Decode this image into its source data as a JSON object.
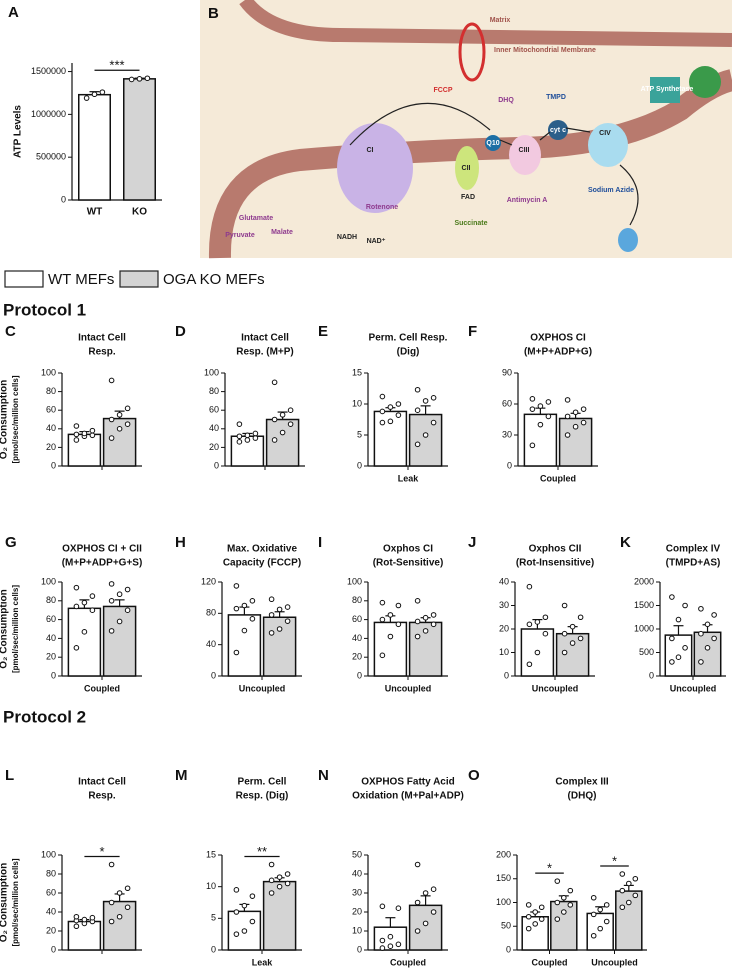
{
  "legend": [
    {
      "name": "WT MEFs",
      "color": "#ffffff"
    },
    {
      "name": "OGA KO MEFs",
      "color": "#d4d4d4"
    }
  ],
  "protocols": [
    "Protocol 1",
    "Protocol 2"
  ],
  "diagram": {
    "panel": "B",
    "labels": [
      "Matrix",
      "Inner Mitochondrial Membrane",
      "FCCP",
      "DHQ",
      "TMPD",
      "CI",
      "CII",
      "FAD",
      "Succinate",
      "Q10",
      "CIII",
      "cyt c",
      "CIV",
      "ATP Synthetase",
      "Rotenone",
      "Antimycin A",
      "Sodium Azide",
      "Glutamate",
      "Pyruvate",
      "Malate",
      "NADH",
      "NAD⁺"
    ]
  },
  "chart_data": [
    {
      "panel": "A",
      "type": "bar",
      "ylabel": [
        "ATP Levels"
      ],
      "categories": [
        "WT",
        "KO"
      ],
      "values": [
        1230000,
        1415000
      ],
      "errors": [
        35000,
        8000
      ],
      "points": [
        [
          1190000,
          1235000,
          1260000
        ],
        [
          1408000,
          1415000,
          1422000
        ]
      ],
      "colors": [
        "#ffffff",
        "#d4d4d4"
      ],
      "ylim": [
        0,
        1600000
      ],
      "yticks": [
        0,
        500000,
        1000000,
        1500000
      ],
      "significance": "***"
    },
    {
      "panel": "C",
      "type": "bar",
      "title": [
        "Intact  Cell",
        "Resp."
      ],
      "ylabel": [
        "O₂ Consumption",
        "[pmol/sec/million cells]"
      ],
      "categories": [
        null
      ],
      "series": [
        {
          "values": [
            34
          ],
          "errors": [
            3
          ],
          "points": [
            [
              28,
              32,
              33,
              34,
              35,
              38,
              43
            ]
          ]
        },
        {
          "values": [
            51
          ],
          "errors": [
            8
          ],
          "points": [
            [
              30,
              40,
              45,
              50,
              55,
              62,
              92
            ]
          ]
        }
      ],
      "ylim": [
        0,
        100
      ],
      "yticks": [
        0,
        20,
        40,
        60,
        80,
        100
      ]
    },
    {
      "panel": "D",
      "type": "bar",
      "title": [
        "Intact  Cell",
        "Resp. (M+P)"
      ],
      "categories": [
        null
      ],
      "series": [
        {
          "values": [
            32
          ],
          "errors": [
            3
          ],
          "points": [
            [
              26,
              28,
              30,
              32,
              33,
              35,
              45
            ]
          ]
        },
        {
          "values": [
            50
          ],
          "errors": [
            8
          ],
          "points": [
            [
              28,
              36,
              45,
              50,
              55,
              60,
              90
            ]
          ]
        }
      ],
      "ylim": [
        0,
        100
      ],
      "yticks": [
        0,
        20,
        40,
        60,
        80,
        100
      ]
    },
    {
      "panel": "E",
      "type": "bar",
      "title": [
        "Perm. Cell Resp.",
        "(Dig)"
      ],
      "categories": [
        "Leak"
      ],
      "series": [
        {
          "values": [
            8.8
          ],
          "errors": [
            0.6
          ],
          "points": [
            [
              7,
              7.2,
              8.2,
              8.8,
              9.5,
              10,
              11.2
            ]
          ]
        },
        {
          "values": [
            8.3
          ],
          "errors": [
            1.4
          ],
          "points": [
            [
              3.5,
              5,
              7,
              9,
              10.5,
              11,
              12.3
            ]
          ]
        }
      ],
      "ylim": [
        0,
        15
      ],
      "yticks": [
        0,
        5,
        10,
        15
      ]
    },
    {
      "panel": "F",
      "type": "bar",
      "title": [
        "OXPHOS CI",
        "(M+P+ADP+G)"
      ],
      "categories": [
        "Coupled"
      ],
      "series": [
        {
          "values": [
            50
          ],
          "errors": [
            6
          ],
          "points": [
            [
              20,
              40,
              48,
              55,
              58,
              62,
              65
            ]
          ]
        },
        {
          "values": [
            46
          ],
          "errors": [
            5
          ],
          "points": [
            [
              30,
              38,
              42,
              48,
              52,
              55,
              64
            ]
          ]
        }
      ],
      "ylim": [
        0,
        90
      ],
      "yticks": [
        0,
        30,
        60,
        90
      ]
    },
    {
      "panel": "G",
      "type": "bar",
      "title": [
        "OXPHOS  CI + CII",
        "(M+P+ADP+G+S)"
      ],
      "ylabel": [
        "O₂ Consumption",
        "[pmol/sec/million cells]"
      ],
      "categories": [
        "Coupled"
      ],
      "series": [
        {
          "values": [
            72
          ],
          "errors": [
            9
          ],
          "points": [
            [
              30,
              47,
              70,
              74,
              78,
              85,
              94
            ]
          ]
        },
        {
          "values": [
            74
          ],
          "errors": [
            7
          ],
          "points": [
            [
              48,
              58,
              70,
              80,
              87,
              92,
              98
            ]
          ]
        }
      ],
      "ylim": [
        0,
        100
      ],
      "yticks": [
        0,
        20,
        40,
        60,
        80,
        100
      ]
    },
    {
      "panel": "H",
      "type": "bar",
      "title": [
        "Max. Oxidative",
        "Capacity (FCCP)"
      ],
      "categories": [
        "Uncoupled"
      ],
      "series": [
        {
          "values": [
            78
          ],
          "errors": [
            10
          ],
          "points": [
            [
              30,
              58,
              73,
              86,
              90,
              96,
              115
            ]
          ]
        },
        {
          "values": [
            75
          ],
          "errors": [
            7
          ],
          "points": [
            [
              55,
              60,
              70,
              78,
              85,
              88,
              98
            ]
          ]
        }
      ],
      "ylim": [
        0,
        120
      ],
      "yticks": [
        0,
        40,
        80,
        120
      ]
    },
    {
      "panel": "I",
      "type": "bar",
      "title": [
        "Oxphos CI",
        "(Rot-Sensitive)"
      ],
      "categories": [
        "Uncoupled"
      ],
      "series": [
        {
          "values": [
            57
          ],
          "errors": [
            7
          ],
          "points": [
            [
              22,
              42,
              55,
              60,
              65,
              75,
              78
            ]
          ]
        },
        {
          "values": [
            57
          ],
          "errors": [
            5
          ],
          "points": [
            [
              42,
              48,
              55,
              58,
              62,
              65,
              80
            ]
          ]
        }
      ],
      "ylim": [
        0,
        100
      ],
      "yticks": [
        0,
        20,
        40,
        60,
        80,
        100
      ]
    },
    {
      "panel": "J",
      "type": "bar",
      "title": [
        "Oxphos CII",
        "(Rot-Insensitive)"
      ],
      "categories": [
        "Uncoupled"
      ],
      "series": [
        {
          "values": [
            20
          ],
          "errors": [
            4
          ],
          "points": [
            [
              5,
              10,
              18,
              22,
              23,
              25,
              38
            ]
          ]
        },
        {
          "values": [
            18
          ],
          "errors": [
            3
          ],
          "points": [
            [
              10,
              14,
              16,
              18,
              21,
              25,
              30
            ]
          ]
        }
      ],
      "ylim": [
        0,
        40
      ],
      "yticks": [
        0,
        10,
        20,
        30,
        40
      ]
    },
    {
      "panel": "K",
      "type": "bar",
      "title": [
        "Complex IV",
        "(TMPD+AS)"
      ],
      "categories": [
        "Uncoupled"
      ],
      "series": [
        {
          "values": [
            870
          ],
          "errors": [
            200
          ],
          "points": [
            [
              300,
              400,
              600,
              800,
              1200,
              1500,
              1680
            ]
          ]
        },
        {
          "values": [
            930
          ],
          "errors": [
            160
          ],
          "points": [
            [
              300,
              600,
              800,
              900,
              1100,
              1300,
              1430
            ]
          ]
        }
      ],
      "ylim": [
        0,
        2000
      ],
      "yticks": [
        0,
        500,
        1000,
        1500,
        2000
      ]
    },
    {
      "panel": "L",
      "type": "bar",
      "title": [
        "Intact  Cell",
        "Resp."
      ],
      "ylabel": [
        "O₂ Consumption",
        "[pmol/sec/million cells]"
      ],
      "categories": [
        null
      ],
      "series": [
        {
          "values": [
            30
          ],
          "errors": [
            2
          ],
          "points": [
            [
              25,
              28,
              30,
              31,
              32,
              34,
              35
            ]
          ]
        },
        {
          "values": [
            51
          ],
          "errors": [
            8
          ],
          "points": [
            [
              30,
              35,
              45,
              50,
              60,
              65,
              90
            ]
          ]
        }
      ],
      "ylim": [
        0,
        100
      ],
      "yticks": [
        0,
        20,
        40,
        60,
        80,
        100
      ],
      "significance": [
        "*"
      ]
    },
    {
      "panel": "M",
      "type": "bar",
      "title": [
        "Perm. Cell",
        "Resp. (Dig)"
      ],
      "categories": [
        "Leak"
      ],
      "series": [
        {
          "values": [
            6.1
          ],
          "errors": [
            1.1
          ],
          "points": [
            [
              2.5,
              3,
              4.5,
              6,
              7,
              8.5,
              9.5
            ]
          ]
        },
        {
          "values": [
            10.8
          ],
          "errors": [
            0.6
          ],
          "points": [
            [
              9,
              10,
              10.5,
              11,
              11.5,
              12,
              13.5
            ]
          ]
        }
      ],
      "ylim": [
        0,
        15
      ],
      "yticks": [
        0,
        5,
        10,
        15
      ],
      "significance": [
        "**"
      ]
    },
    {
      "panel": "N",
      "type": "bar",
      "title": [
        "OXPHOS Fatty  Acid",
        "Oxidation (M+Pal+ADP)"
      ],
      "categories": [
        "Coupled"
      ],
      "series": [
        {
          "values": [
            12
          ],
          "errors": [
            5
          ],
          "points": [
            [
              1,
              2,
              3,
              5,
              7,
              22,
              23
            ]
          ]
        },
        {
          "values": [
            23.5
          ],
          "errors": [
            5
          ],
          "points": [
            [
              10,
              14,
              20,
              25,
              30,
              32,
              45
            ]
          ]
        }
      ],
      "ylim": [
        0,
        50
      ],
      "yticks": [
        0,
        10,
        20,
        30,
        40,
        50
      ]
    },
    {
      "panel": "O",
      "type": "bar",
      "title": [
        "Complex III",
        "(DHQ)"
      ],
      "categories": [
        "Coupled",
        "Uncoupled"
      ],
      "series": [
        {
          "values": [
            70,
            77
          ],
          "errors": [
            10,
            14
          ],
          "points": [
            [
              45,
              55,
              65,
              70,
              80,
              90,
              95
            ],
            [
              30,
              45,
              60,
              75,
              85,
              95,
              110
            ]
          ]
        },
        {
          "values": [
            102,
            124
          ],
          "errors": [
            12,
            12
          ],
          "points": [
            [
              65,
              80,
              95,
              100,
              110,
              125,
              145
            ],
            [
              90,
              100,
              115,
              125,
              140,
              150,
              160
            ]
          ]
        }
      ],
      "ylim": [
        0,
        200
      ],
      "yticks": [
        0,
        50,
        100,
        150,
        200
      ],
      "significance": [
        "*",
        "*"
      ]
    }
  ]
}
